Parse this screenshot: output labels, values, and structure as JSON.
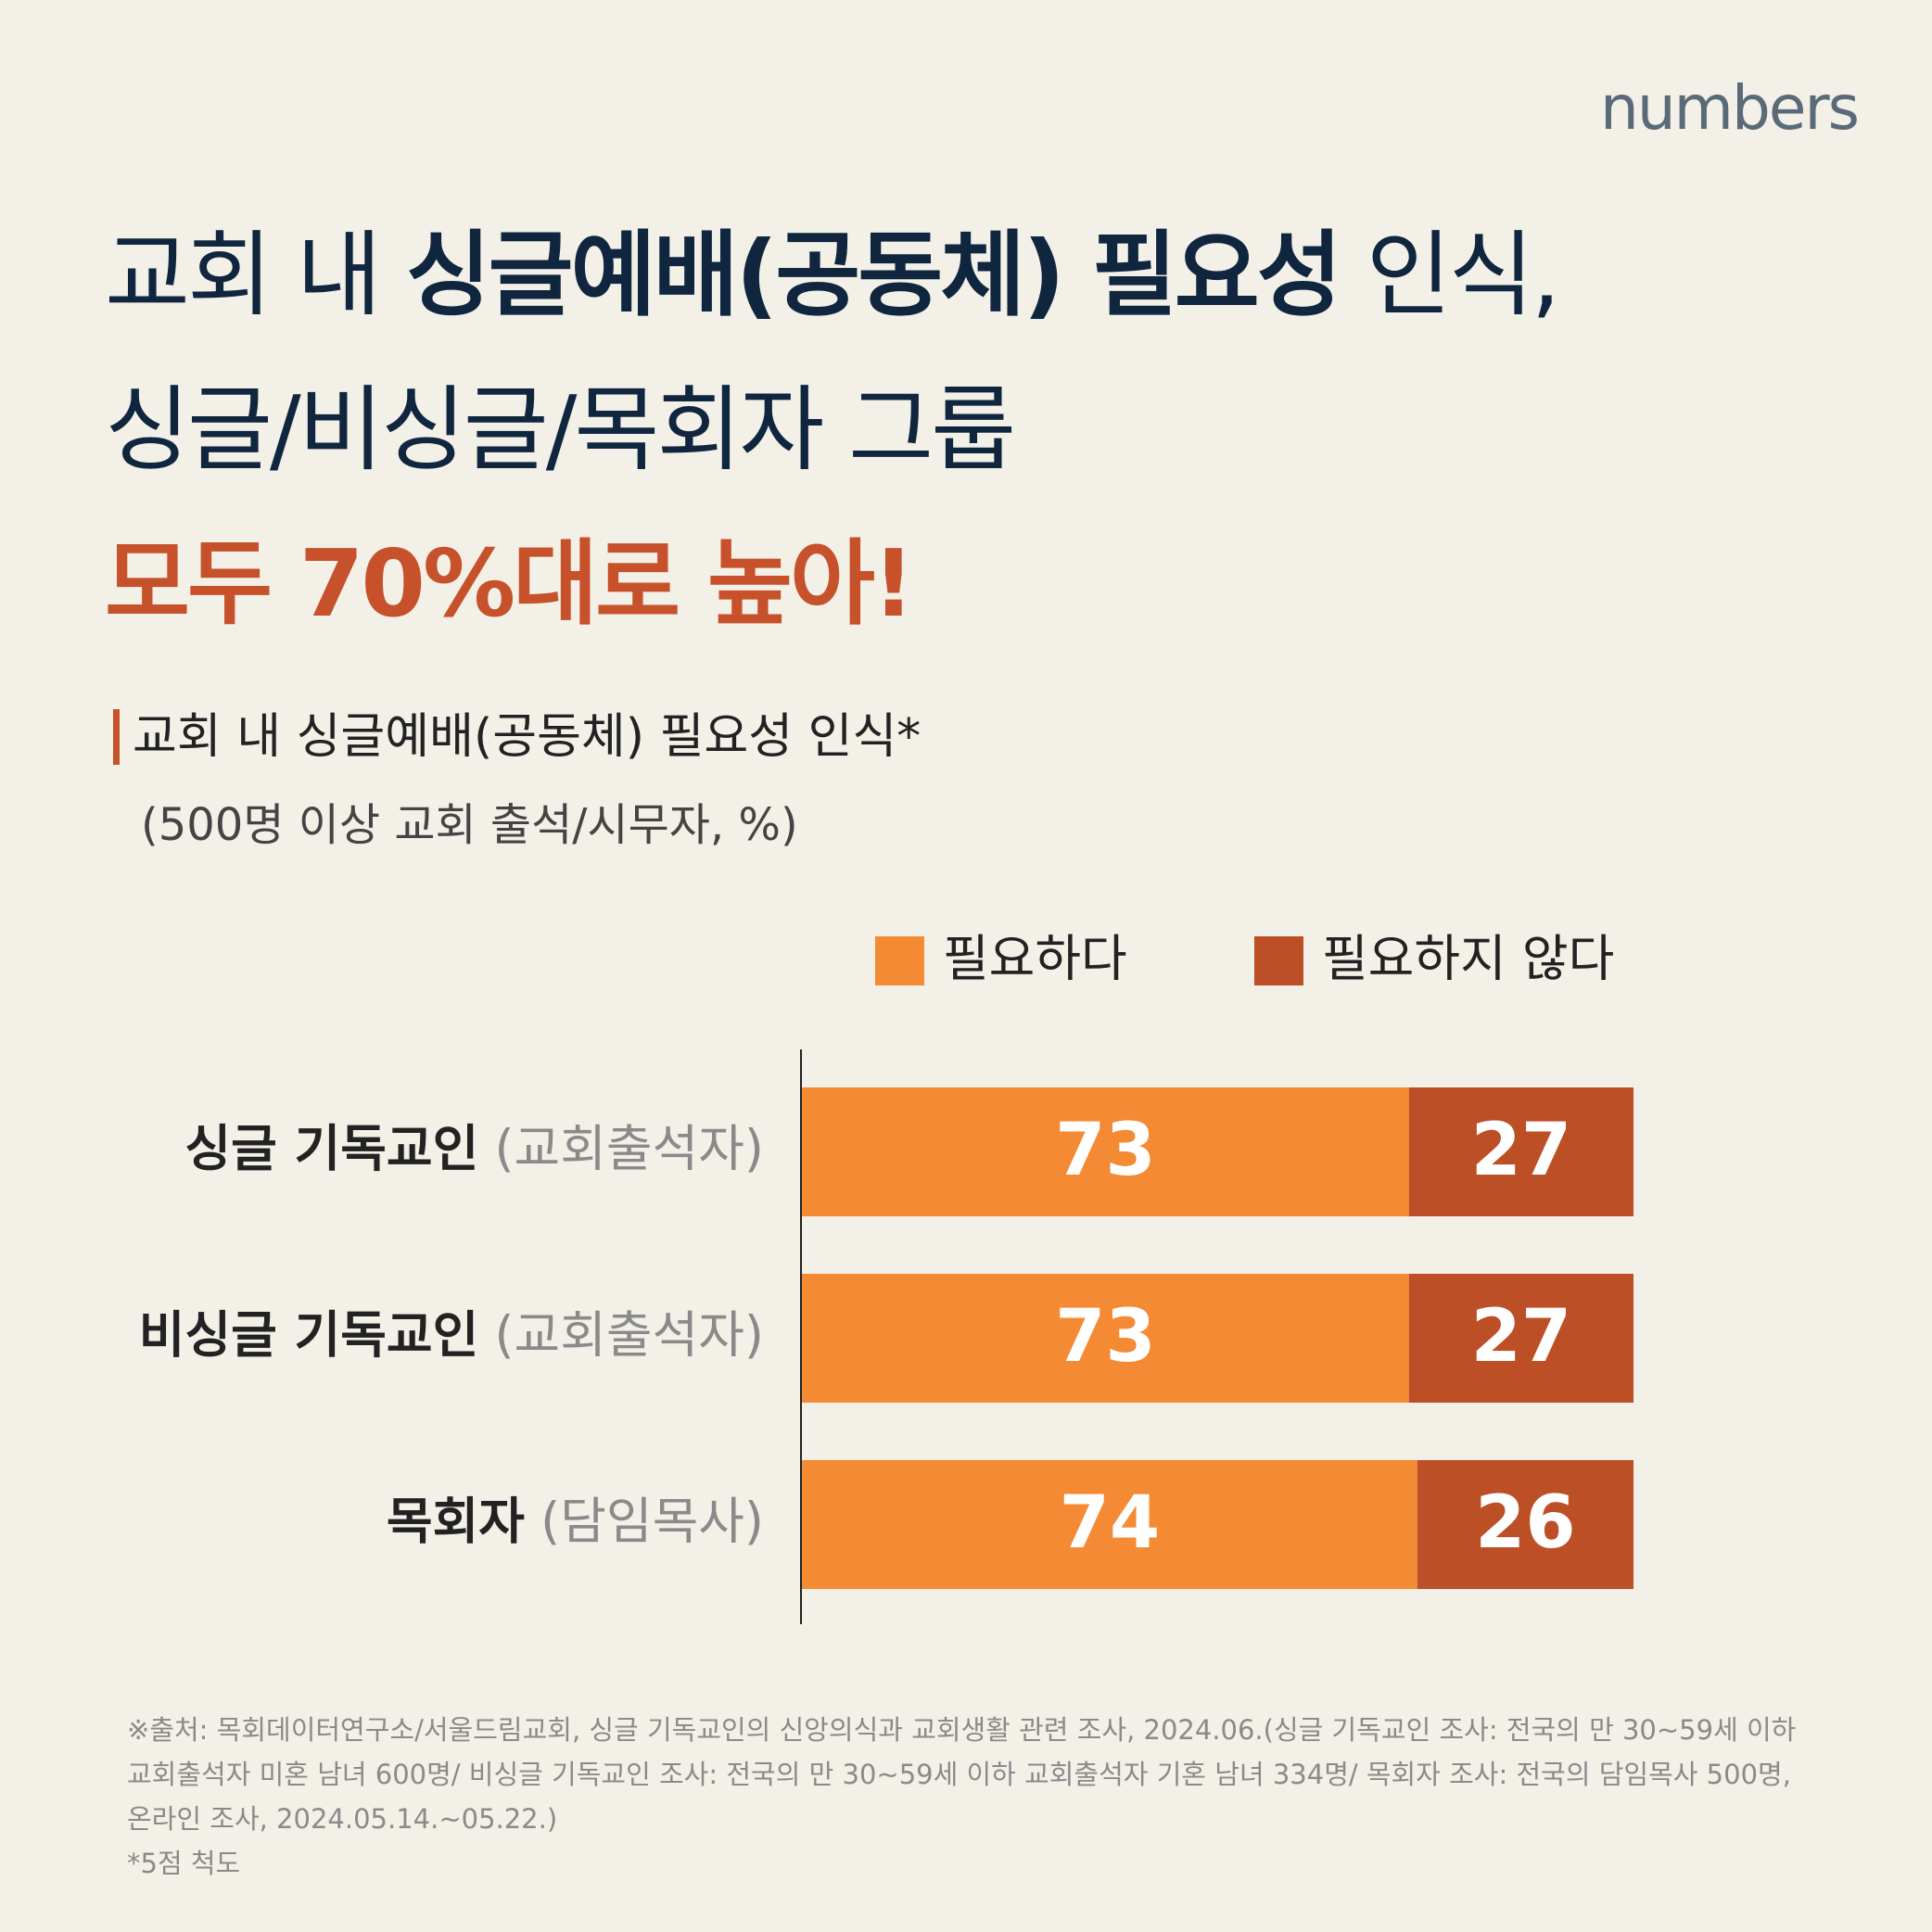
{
  "header": {
    "brand": "numbers",
    "title": [
      [
        "교회 내 ",
        "싱글예배(공동체) 필요성",
        " 인식,"
      ],
      "싱글/비싱글/목회자 그룹",
      "모두 70%대로 높아!"
    ]
  },
  "chart_data": {
    "type": "stacked-barh",
    "title": "교회 내 싱글예배(공동체) 필요성 인식*",
    "subtitle": "(500명 이상 교회 출석/시무자, %)",
    "categories": [
      "싱글 기독교인",
      "비싱글 기독교인",
      "목회자"
    ],
    "category_notes": [
      "(교회출석자)",
      "(교회출석자)",
      "(담임목사)"
    ],
    "series": [
      {
        "name": "필요하다",
        "color": "#f58a35",
        "values": [
          73,
          73,
          74
        ]
      },
      {
        "name": "필요하지 않다",
        "color": "#bd4f27",
        "values": [
          27,
          27,
          26
        ]
      }
    ],
    "xlim": [
      0,
      100
    ]
  },
  "footnote": {
    "source": "※출처: 목회데이터연구소/서울드림교회, 싱글 기독교인의 신앙의식과 교회생활 관련 조사, 2024.06.(싱글 기독교인 조사: 전국의 만 30~59세 이하 교회출석자 미혼 남녀 600명/ 비싱글 기독교인 조사: 전국의 만 30~59세 이하 교회출석자 기혼 남녀 334명/ 목회자 조사: 전국의 담임목사 500명, 온라인 조사, 2024.05.14.~05.22.)",
    "note": "*5점 척도"
  }
}
